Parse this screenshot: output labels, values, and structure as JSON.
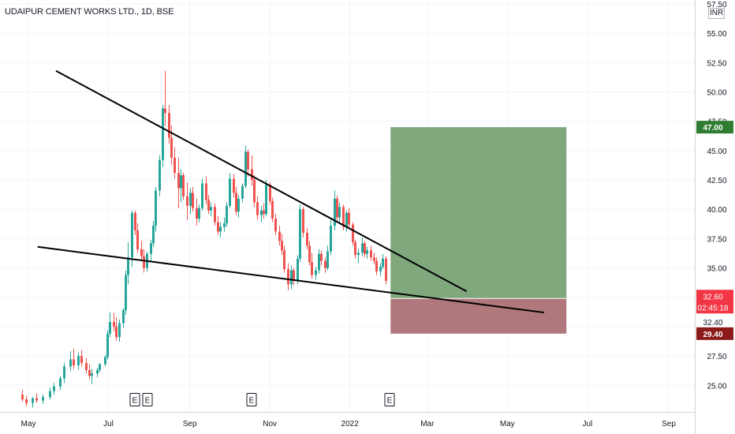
{
  "header": {
    "title": "UDAIPUR CEMENT WORKS LTD., 1D, BSE",
    "currency": "INR"
  },
  "price_labels": {
    "target": "47.00",
    "last": "32.60",
    "countdown": "02:45:18",
    "entry": "32.40",
    "stop": "29.40"
  },
  "colors": {
    "up": "#26a69a",
    "down": "#ef5350",
    "background": "#ffffff",
    "grid": "#f0f3fa",
    "target_zone": "#81a77d",
    "stop_zone": "#b0787c",
    "trendline": "#000000",
    "last_price": "#f23645",
    "target_label": "#2e7d32",
    "stop_label": "#8b1a1a"
  },
  "chart_data": {
    "type": "candlestick",
    "title": "UDAIPUR CEMENT WORKS LTD., 1D, BSE",
    "ylim": [
      23.0,
      57.5
    ],
    "y_ticks": [
      "25.00",
      "27.50",
      "30.00",
      "32.50",
      "35.00",
      "37.50",
      "40.00",
      "42.50",
      "45.00",
      "47.50",
      "50.00",
      "52.50",
      "55.00",
      "57.50"
    ],
    "x_ticks": [
      "May",
      "Jul",
      "Sep",
      "Nov",
      "2022",
      "Mar",
      "May",
      "Jul",
      "Sep"
    ],
    "earnings_markers": [
      "E",
      "E",
      "E",
      "E"
    ],
    "grid": true,
    "candles": [
      [
        "2021-04-26",
        24.2,
        24.6,
        23.6,
        23.8
      ],
      [
        "2021-04-29",
        23.8,
        24.1,
        23.2,
        23.5
      ],
      [
        "2021-05-04",
        23.5,
        24.0,
        23.1,
        23.9
      ],
      [
        "2021-05-07",
        23.9,
        24.3,
        23.5,
        23.7
      ],
      [
        "2021-05-12",
        23.7,
        24.2,
        23.4,
        24.0
      ],
      [
        "2021-05-17",
        24.0,
        24.8,
        23.8,
        24.5
      ],
      [
        "2021-05-20",
        24.5,
        25.2,
        24.2,
        24.9
      ],
      [
        "2021-05-25",
        24.9,
        25.8,
        24.6,
        25.6
      ],
      [
        "2021-05-28",
        25.6,
        26.9,
        25.2,
        26.6
      ],
      [
        "2021-06-02",
        26.6,
        27.9,
        26.2,
        27.2
      ],
      [
        "2021-06-04",
        27.2,
        28.1,
        26.4,
        26.7
      ],
      [
        "2021-06-08",
        26.7,
        27.8,
        26.3,
        27.5
      ],
      [
        "2021-06-10",
        27.5,
        28.0,
        26.6,
        26.9
      ],
      [
        "2021-06-14",
        26.9,
        27.3,
        26.0,
        26.3
      ],
      [
        "2021-06-16",
        26.3,
        26.8,
        25.5,
        25.8
      ],
      [
        "2021-06-18",
        25.8,
        26.4,
        25.1,
        26.0
      ],
      [
        "2021-06-22",
        26.0,
        26.5,
        25.7,
        26.3
      ],
      [
        "2021-06-24",
        26.3,
        26.9,
        26.1,
        26.8
      ],
      [
        "2021-06-28",
        26.8,
        27.6,
        26.6,
        27.4
      ],
      [
        "2021-06-30",
        27.4,
        29.7,
        27.2,
        29.4
      ],
      [
        "2021-07-02",
        29.4,
        31.2,
        29.1,
        30.4
      ],
      [
        "2021-07-05",
        30.4,
        31.2,
        29.6,
        30.0
      ],
      [
        "2021-07-07",
        30.0,
        30.8,
        28.8,
        29.1
      ],
      [
        "2021-07-09",
        29.1,
        30.6,
        28.7,
        30.3
      ],
      [
        "2021-07-12",
        30.3,
        31.6,
        29.9,
        31.4
      ],
      [
        "2021-07-14",
        31.4,
        34.8,
        31.0,
        34.4
      ],
      [
        "2021-07-16",
        34.4,
        37.2,
        33.6,
        35.9
      ],
      [
        "2021-07-19",
        35.9,
        39.9,
        35.1,
        39.7
      ],
      [
        "2021-07-21",
        39.7,
        39.9,
        37.8,
        38.2
      ],
      [
        "2021-07-23",
        38.2,
        38.8,
        36.3,
        36.6
      ],
      [
        "2021-07-26",
        36.6,
        37.3,
        35.7,
        36.0
      ],
      [
        "2021-07-28",
        36.0,
        36.6,
        34.6,
        35.0
      ],
      [
        "2021-07-30",
        35.0,
        36.4,
        34.7,
        36.2
      ],
      [
        "2021-08-02",
        36.2,
        37.4,
        35.6,
        37.1
      ],
      [
        "2021-08-04",
        37.1,
        39.0,
        36.8,
        38.6
      ],
      [
        "2021-08-06",
        38.6,
        41.9,
        38.1,
        41.6
      ],
      [
        "2021-08-09",
        41.6,
        44.6,
        41.1,
        44.2
      ],
      [
        "2021-08-11",
        44.2,
        48.9,
        43.6,
        48.6
      ],
      [
        "2021-08-13",
        48.6,
        51.8,
        47.1,
        48.2
      ],
      [
        "2021-08-16",
        48.2,
        48.9,
        45.6,
        46.1
      ],
      [
        "2021-08-18",
        46.1,
        47.1,
        43.8,
        44.4
      ],
      [
        "2021-08-20",
        44.4,
        45.3,
        42.6,
        43.1
      ],
      [
        "2021-08-23",
        43.1,
        44.4,
        40.1,
        41.8
      ],
      [
        "2021-08-25",
        41.8,
        43.4,
        40.6,
        42.9
      ],
      [
        "2021-08-27",
        42.9,
        43.1,
        40.8,
        41.1
      ],
      [
        "2021-08-30",
        41.1,
        42.3,
        39.1,
        40.3
      ],
      [
        "2021-09-01",
        40.3,
        41.8,
        39.6,
        41.4
      ],
      [
        "2021-09-03",
        41.4,
        41.9,
        39.8,
        40.1
      ],
      [
        "2021-09-06",
        40.1,
        40.9,
        38.6,
        39.2
      ],
      [
        "2021-09-08",
        39.2,
        40.4,
        38.9,
        40.1
      ],
      [
        "2021-09-10",
        40.1,
        42.6,
        39.9,
        42.2
      ],
      [
        "2021-09-13",
        42.2,
        42.8,
        40.4,
        40.8
      ],
      [
        "2021-09-15",
        40.8,
        41.2,
        39.6,
        39.9
      ],
      [
        "2021-09-17",
        39.9,
        40.6,
        39.4,
        40.2
      ],
      [
        "2021-09-20",
        40.2,
        40.5,
        38.6,
        38.9
      ],
      [
        "2021-09-22",
        38.9,
        39.4,
        37.8,
        38.1
      ],
      [
        "2021-09-24",
        38.1,
        38.9,
        37.6,
        38.5
      ],
      [
        "2021-09-27",
        38.5,
        39.3,
        38.1,
        38.8
      ],
      [
        "2021-09-29",
        38.8,
        40.6,
        38.5,
        40.3
      ],
      [
        "2021-10-01",
        40.3,
        43.1,
        40.1,
        42.6
      ],
      [
        "2021-10-04",
        42.6,
        43.0,
        41.0,
        41.4
      ],
      [
        "2021-10-06",
        41.4,
        41.9,
        39.5,
        39.8
      ],
      [
        "2021-10-08",
        39.8,
        41.2,
        39.3,
        40.9
      ],
      [
        "2021-10-11",
        40.9,
        42.2,
        40.6,
        42.0
      ],
      [
        "2021-10-13",
        42.0,
        45.4,
        41.8,
        44.9
      ],
      [
        "2021-10-15",
        44.9,
        45.1,
        42.8,
        43.4
      ],
      [
        "2021-10-18",
        43.4,
        44.6,
        42.0,
        42.5
      ],
      [
        "2021-10-20",
        42.5,
        42.9,
        40.2,
        40.6
      ],
      [
        "2021-10-22",
        40.6,
        41.1,
        39.1,
        39.5
      ],
      [
        "2021-10-25",
        39.5,
        40.3,
        38.9,
        39.9
      ],
      [
        "2021-10-27",
        39.9,
        40.5,
        39.2,
        39.6
      ],
      [
        "2021-10-29",
        39.6,
        42.5,
        39.4,
        42.1
      ],
      [
        "2021-11-01",
        42.1,
        42.3,
        40.4,
        40.7
      ],
      [
        "2021-11-03",
        40.7,
        41.0,
        38.9,
        39.2
      ],
      [
        "2021-11-05",
        39.2,
        39.6,
        37.8,
        38.1
      ],
      [
        "2021-11-08",
        38.1,
        38.6,
        36.9,
        37.3
      ],
      [
        "2021-11-10",
        37.3,
        37.9,
        36.1,
        36.5
      ],
      [
        "2021-11-12",
        36.5,
        36.9,
        34.6,
        34.9
      ],
      [
        "2021-11-15",
        34.9,
        35.4,
        33.1,
        33.6
      ],
      [
        "2021-11-17",
        33.6,
        35.2,
        33.2,
        34.8
      ],
      [
        "2021-11-19",
        34.8,
        35.0,
        33.5,
        33.9
      ],
      [
        "2021-11-22",
        33.9,
        36.1,
        33.6,
        35.8
      ],
      [
        "2021-11-24",
        35.8,
        40.4,
        35.5,
        40.0
      ],
      [
        "2021-11-26",
        40.0,
        40.2,
        37.6,
        38.0
      ],
      [
        "2021-11-29",
        38.0,
        38.4,
        36.6,
        36.9
      ],
      [
        "2021-12-01",
        36.9,
        37.3,
        35.2,
        35.5
      ],
      [
        "2021-12-03",
        35.5,
        36.3,
        34.1,
        34.4
      ],
      [
        "2021-12-06",
        34.4,
        35.1,
        34.0,
        34.8
      ],
      [
        "2021-12-08",
        34.8,
        36.6,
        34.5,
        36.2
      ],
      [
        "2021-12-10",
        36.2,
        36.5,
        35.2,
        35.6
      ],
      [
        "2021-12-13",
        35.6,
        35.9,
        34.6,
        35.0
      ],
      [
        "2021-12-15",
        35.0,
        36.9,
        34.8,
        36.4
      ],
      [
        "2021-12-17",
        36.4,
        39.1,
        36.1,
        38.6
      ],
      [
        "2021-12-20",
        38.6,
        41.6,
        38.2,
        40.9
      ],
      [
        "2021-12-22",
        40.9,
        41.2,
        38.9,
        39.3
      ],
      [
        "2021-12-24",
        39.3,
        40.6,
        38.8,
        40.2
      ],
      [
        "2021-12-27",
        40.2,
        40.4,
        38.2,
        38.5
      ],
      [
        "2021-12-29",
        38.5,
        39.9,
        38.1,
        39.7
      ],
      [
        "2021-12-31",
        39.7,
        40.1,
        38.4,
        38.7
      ],
      [
        "2022-01-03",
        38.7,
        38.9,
        36.9,
        37.2
      ],
      [
        "2022-01-05",
        37.2,
        37.4,
        35.8,
        36.1
      ],
      [
        "2022-01-07",
        36.1,
        36.6,
        35.4,
        36.3
      ],
      [
        "2022-01-10",
        36.3,
        37.6,
        36.0,
        37.1
      ],
      [
        "2022-01-12",
        37.1,
        37.3,
        35.9,
        36.2
      ],
      [
        "2022-01-14",
        36.2,
        36.8,
        35.8,
        36.5
      ],
      [
        "2022-01-17",
        36.5,
        36.9,
        35.6,
        35.9
      ],
      [
        "2022-01-19",
        35.9,
        36.3,
        35.3,
        35.6
      ],
      [
        "2022-01-21",
        35.6,
        35.9,
        34.4,
        34.7
      ],
      [
        "2022-01-24",
        34.7,
        35.4,
        34.3,
        35.1
      ],
      [
        "2022-01-26",
        35.1,
        36.2,
        34.9,
        35.8
      ],
      [
        "2022-01-28",
        35.8,
        36.0,
        33.6,
        33.9
      ]
    ],
    "trendlines": [
      {
        "name": "upper",
        "start": [
          "2021-05-22",
          51.8
        ],
        "end": [
          "2022-03-31",
          33.0
        ]
      },
      {
        "name": "lower",
        "start": [
          "2021-05-08",
          36.8
        ],
        "end": [
          "2022-05-29",
          31.2
        ]
      }
    ],
    "position": {
      "type": "long",
      "start": "2022-02-01",
      "end": "2022-06-15",
      "entry": 32.4,
      "target": 47.0,
      "stop": 29.4
    },
    "last_price": 32.6
  }
}
